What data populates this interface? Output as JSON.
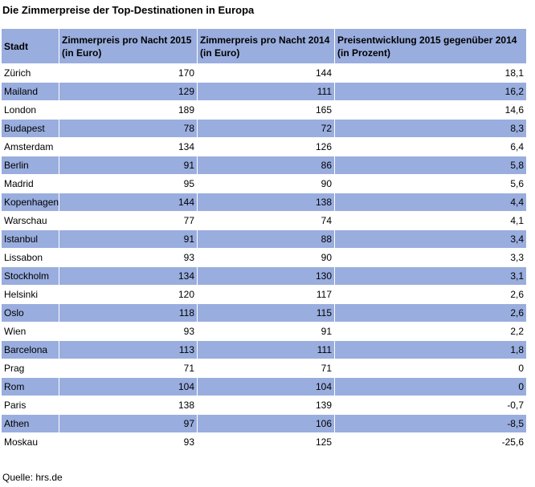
{
  "title": "Die Zimmerpreise der Top-Destinationen in Europa",
  "colors": {
    "header_bg": "#99adde",
    "stripe_bg": "#99adde",
    "row_bg": "#ffffff"
  },
  "table": {
    "headers": [
      "Stadt",
      "Zimmerpreis pro Nacht 2015 (in Euro)",
      "Zimmerpreis pro Nacht 2014 (in Euro)",
      "Preisentwicklung 2015 gegenüber 2014 (in Prozent)"
    ],
    "rows": [
      [
        "Zürich",
        "170",
        "144",
        "18,1"
      ],
      [
        "Mailand",
        "129",
        "111",
        "16,2"
      ],
      [
        "London",
        "189",
        "165",
        "14,6"
      ],
      [
        "Budapest",
        "78",
        "72",
        "8,3"
      ],
      [
        "Amsterdam",
        "134",
        "126",
        "6,4"
      ],
      [
        "Berlin",
        "91",
        "86",
        "5,8"
      ],
      [
        "Madrid",
        "95",
        "90",
        "5,6"
      ],
      [
        "Kopenhagen",
        "144",
        "138",
        "4,4"
      ],
      [
        "Warschau",
        "77",
        "74",
        "4,1"
      ],
      [
        "Istanbul",
        "91",
        "88",
        "3,4"
      ],
      [
        "Lissabon",
        "93",
        "90",
        "3,3"
      ],
      [
        "Stockholm",
        "134",
        "130",
        "3,1"
      ],
      [
        "Helsinki",
        "120",
        "117",
        "2,6"
      ],
      [
        "Oslo",
        "118",
        "115",
        "2,6"
      ],
      [
        "Wien",
        "93",
        "91",
        "2,2"
      ],
      [
        "Barcelona",
        "113",
        "111",
        "1,8"
      ],
      [
        "Prag",
        "71",
        "71",
        "0"
      ],
      [
        "Rom",
        "104",
        "104",
        "0"
      ],
      [
        "Paris",
        "138",
        "139",
        "-0,7"
      ],
      [
        "Athen",
        "97",
        "106",
        "-8,5"
      ],
      [
        "Moskau",
        "93",
        "125",
        "-25,6"
      ]
    ]
  },
  "source": "Quelle: hrs.de"
}
